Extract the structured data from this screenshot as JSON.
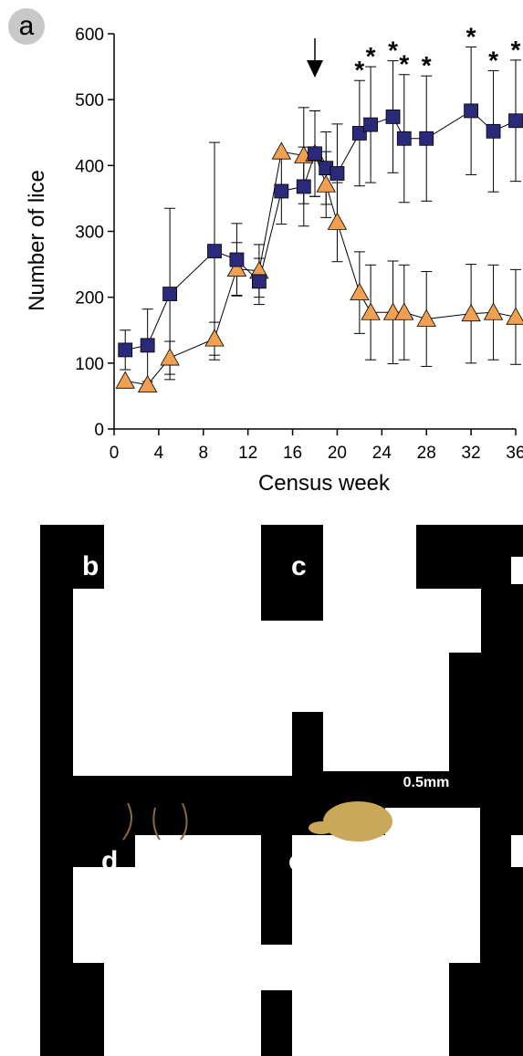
{
  "panels": {
    "a": "a",
    "b": "b",
    "c": "c",
    "d": "d",
    "e": "e"
  },
  "scale_bar": "0.5mm",
  "chart_data": {
    "type": "line",
    "title": "",
    "xlabel": "Census week",
    "ylabel": "Number of lice",
    "xlim": [
      0,
      36
    ],
    "ylim": [
      0,
      600
    ],
    "x_ticks": [
      0,
      4,
      8,
      12,
      16,
      20,
      24,
      28,
      32,
      36
    ],
    "y_ticks": [
      0,
      100,
      200,
      300,
      400,
      500,
      600
    ],
    "grid": false,
    "legend": "none",
    "annotation_arrow_x": 18,
    "series": [
      {
        "marker": "square",
        "color": "#2b2a7a",
        "points": [
          {
            "x": 1,
            "y": 120,
            "err": 30
          },
          {
            "x": 3,
            "y": 127,
            "err": 55
          },
          {
            "x": 5,
            "y": 205,
            "err": 130
          },
          {
            "x": 9,
            "y": 270,
            "err": 165
          },
          {
            "x": 11,
            "y": 257,
            "err": 55
          },
          {
            "x": 13,
            "y": 224,
            "err": 35
          },
          {
            "x": 15,
            "y": 361,
            "err": 50
          },
          {
            "x": 17,
            "y": 368,
            "err": 60
          },
          {
            "x": 18,
            "y": 418,
            "err": 65
          },
          {
            "x": 19,
            "y": 396,
            "err": 55
          },
          {
            "x": 20,
            "y": 388,
            "err": 75
          },
          {
            "x": 22,
            "y": 449,
            "err": 80
          },
          {
            "x": 23,
            "y": 462,
            "err": 88
          },
          {
            "x": 25,
            "y": 474,
            "err": 85
          },
          {
            "x": 26,
            "y": 441,
            "err": 97
          },
          {
            "x": 28,
            "y": 441,
            "err": 95
          },
          {
            "x": 32,
            "y": 483,
            "err": 97
          },
          {
            "x": 34,
            "y": 452,
            "err": 92
          },
          {
            "x": 36,
            "y": 468,
            "err": 92
          }
        ]
      },
      {
        "marker": "triangle",
        "color": "#f0a050",
        "points": [
          {
            "x": 1,
            "y": 73,
            "err": 0
          },
          {
            "x": 3,
            "y": 67,
            "err": 0
          },
          {
            "x": 5,
            "y": 108,
            "err": 25
          },
          {
            "x": 9,
            "y": 137,
            "err": 25
          },
          {
            "x": 11,
            "y": 243,
            "err": 40
          },
          {
            "x": 13,
            "y": 240,
            "err": 40
          },
          {
            "x": 15,
            "y": 421,
            "err": 0
          },
          {
            "x": 17,
            "y": 415,
            "err": 73
          },
          {
            "x": 18,
            "y": 418,
            "err": 65
          },
          {
            "x": 19,
            "y": 371,
            "err": 50
          },
          {
            "x": 20,
            "y": 314,
            "err": 60
          },
          {
            "x": 22,
            "y": 207,
            "err": 62
          },
          {
            "x": 23,
            "y": 177,
            "err": 72
          },
          {
            "x": 25,
            "y": 177,
            "err": 78
          },
          {
            "x": 26,
            "y": 177,
            "err": 72
          },
          {
            "x": 28,
            "y": 167,
            "err": 72
          },
          {
            "x": 32,
            "y": 175,
            "err": 75
          },
          {
            "x": 34,
            "y": 177,
            "err": 72
          },
          {
            "x": 36,
            "y": 170,
            "err": 72
          }
        ]
      }
    ],
    "significance": [
      {
        "x": 22,
        "label": "*"
      },
      {
        "x": 23,
        "label": "*"
      },
      {
        "x": 25,
        "label": "*"
      },
      {
        "x": 26,
        "label": "*"
      },
      {
        "x": 28,
        "label": "*"
      },
      {
        "x": 32,
        "label": "*"
      },
      {
        "x": 34,
        "label": "*"
      },
      {
        "x": 36,
        "label": "*"
      }
    ]
  }
}
